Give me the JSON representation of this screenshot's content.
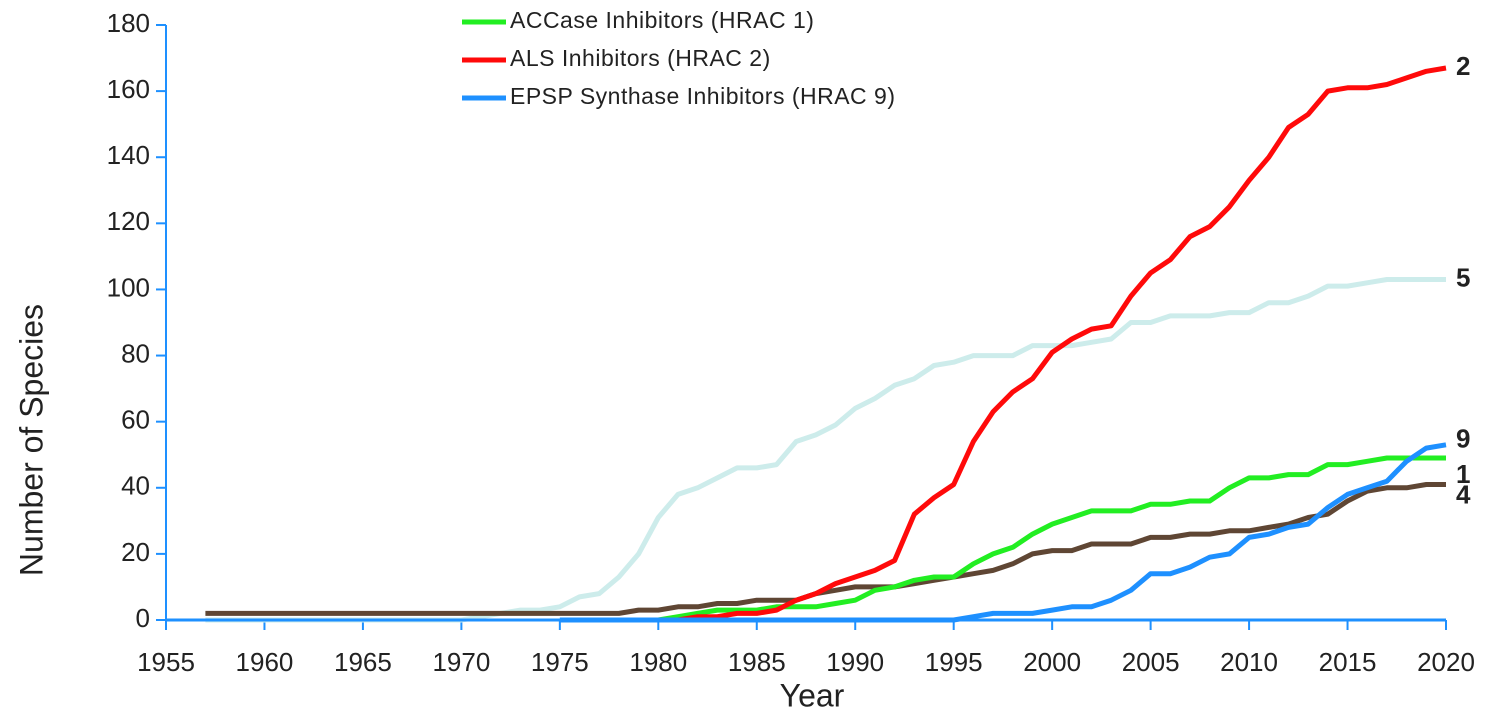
{
  "chart_data": {
    "type": "line",
    "xlabel": "Year",
    "ylabel": "Number of Species",
    "x": [
      1957,
      1958,
      1959,
      1960,
      1961,
      1962,
      1963,
      1964,
      1965,
      1966,
      1967,
      1968,
      1969,
      1970,
      1971,
      1972,
      1973,
      1974,
      1975,
      1976,
      1977,
      1978,
      1979,
      1980,
      1981,
      1982,
      1983,
      1984,
      1985,
      1986,
      1987,
      1988,
      1989,
      1990,
      1991,
      1992,
      1993,
      1994,
      1995,
      1996,
      1997,
      1998,
      1999,
      2000,
      2001,
      2002,
      2003,
      2004,
      2005,
      2006,
      2007,
      2008,
      2009,
      2010,
      2011,
      2012,
      2013,
      2014,
      2015,
      2016,
      2017,
      2018,
      2019,
      2020
    ],
    "xlim": [
      1955,
      2020
    ],
    "xticks": [
      1955,
      1960,
      1965,
      1970,
      1975,
      1980,
      1985,
      1990,
      1995,
      2000,
      2005,
      2010,
      2015,
      2020
    ],
    "ylim": [
      0,
      180
    ],
    "yticks": [
      0,
      20,
      40,
      60,
      80,
      100,
      120,
      140,
      160,
      180
    ],
    "axis_color": "#1e90ff",
    "series": [
      {
        "name": "ACCase Inhibitors (HRAC 1)",
        "color": "#22ee22",
        "label": "1",
        "label_color": "#22ee22",
        "values": [
          null,
          null,
          null,
          null,
          null,
          null,
          null,
          null,
          null,
          null,
          null,
          null,
          null,
          null,
          null,
          null,
          null,
          null,
          null,
          null,
          null,
          null,
          null,
          0,
          1,
          2,
          3,
          3,
          3,
          4,
          4,
          4,
          5,
          6,
          9,
          10,
          12,
          13,
          13,
          17,
          20,
          22,
          26,
          29,
          31,
          33,
          33,
          33,
          35,
          35,
          36,
          36,
          40,
          43,
          43,
          44,
          44,
          47,
          47,
          48,
          49,
          49,
          49,
          49
        ]
      },
      {
        "name": "ALS Inhibitors (HRAC 2)",
        "color": "#ff0a0a",
        "label": "2",
        "label_color": "#ee1111",
        "values": [
          null,
          null,
          null,
          null,
          null,
          null,
          null,
          null,
          null,
          null,
          null,
          null,
          null,
          null,
          null,
          null,
          null,
          null,
          null,
          null,
          null,
          null,
          null,
          0,
          0,
          1,
          1,
          2,
          2,
          3,
          6,
          8,
          11,
          13,
          15,
          18,
          32,
          37,
          41,
          54,
          63,
          69,
          73,
          81,
          85,
          88,
          89,
          98,
          105,
          109,
          116,
          119,
          125,
          133,
          140,
          149,
          153,
          160,
          161,
          161,
          162,
          164,
          166,
          167
        ]
      },
      {
        "name": "EPSP Synthase Inhibitors (HRAC 9)",
        "color": "#1e90ff",
        "label": "9",
        "label_color": "#1e90ff",
        "values": [
          null,
          null,
          null,
          null,
          null,
          null,
          null,
          null,
          null,
          null,
          null,
          null,
          null,
          null,
          null,
          null,
          null,
          null,
          0,
          0,
          0,
          0,
          0,
          0,
          0,
          0,
          0,
          0,
          0,
          0,
          0,
          0,
          0,
          0,
          0,
          0,
          0,
          0,
          0,
          1,
          2,
          2,
          2,
          3,
          4,
          4,
          6,
          9,
          14,
          14,
          16,
          19,
          20,
          25,
          26,
          28,
          29,
          34,
          38,
          40,
          42,
          48,
          52,
          53
        ]
      },
      {
        "color": "#cdeceb",
        "label": "5",
        "label_color": "#0a14d2",
        "values": [
          0,
          0,
          0,
          0,
          0,
          0,
          0,
          0,
          0,
          0,
          0,
          0,
          0,
          0,
          1,
          2,
          3,
          3,
          4,
          7,
          8,
          13,
          20,
          31,
          38,
          40,
          43,
          46,
          46,
          47,
          54,
          56,
          59,
          64,
          67,
          71,
          73,
          77,
          78,
          80,
          80,
          80,
          83,
          83,
          83,
          84,
          85,
          90,
          90,
          92,
          92,
          92,
          93,
          93,
          96,
          96,
          98,
          101,
          101,
          102,
          103,
          103,
          103,
          103
        ]
      },
      {
        "color": "#5f4634",
        "label": "4",
        "label_color": "#8c8c70",
        "values": [
          2,
          2,
          2,
          2,
          2,
          2,
          2,
          2,
          2,
          2,
          2,
          2,
          2,
          2,
          2,
          2,
          2,
          2,
          2,
          2,
          2,
          2,
          3,
          3,
          4,
          4,
          5,
          5,
          6,
          6,
          6,
          8,
          9,
          10,
          10,
          10,
          11,
          12,
          13,
          14,
          15,
          17,
          20,
          21,
          21,
          23,
          23,
          23,
          25,
          25,
          26,
          26,
          27,
          27,
          28,
          29,
          31,
          32,
          36,
          39,
          40,
          40,
          41,
          41
        ]
      }
    ]
  }
}
